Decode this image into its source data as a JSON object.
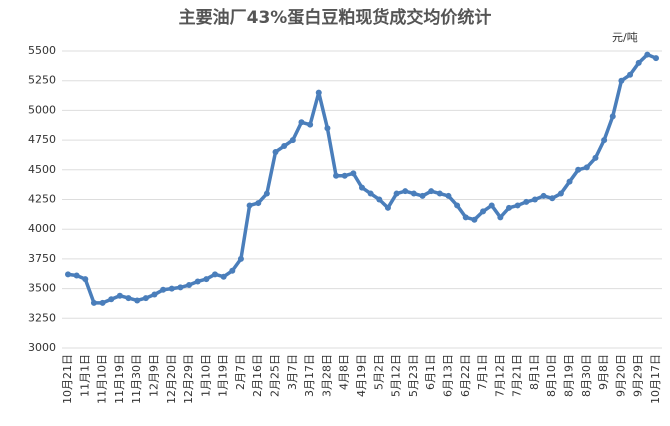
{
  "chart_data": {
    "type": "line",
    "title": "主要油厂43%蛋白豆粕现货成交均价统计",
    "unit": "元/吨",
    "categories": [
      "10月21日",
      null,
      "11月1日",
      null,
      "11月10日",
      null,
      "11月19日",
      null,
      "11月30日",
      null,
      "12月9日",
      null,
      "12月20日",
      null,
      "12月29日",
      null,
      "1月10日",
      null,
      "1月19日",
      null,
      "2月7日",
      null,
      "2月16日",
      null,
      "2月25日",
      null,
      "3月7日",
      null,
      "3月17日",
      null,
      "3月28日",
      null,
      "4月8日",
      null,
      "4月19日",
      null,
      "5月2日",
      null,
      "5月12日",
      null,
      "5月23日",
      null,
      "6月1日",
      null,
      "6月13日",
      null,
      "6月22日",
      null,
      "7月1日",
      null,
      "7月12日",
      null,
      "7月21日",
      null,
      "8月1日",
      null,
      "8月10日",
      null,
      "8月19日",
      null,
      "8月30日",
      null,
      "9月8日",
      null,
      "9月20日",
      null,
      "9月29日",
      null,
      "10月17日"
    ],
    "series": [
      {
        "name": "均价",
        "color": "#4a7ebb",
        "values": [
          3620,
          3610,
          3580,
          3380,
          3380,
          3410,
          3440,
          3420,
          3400,
          3420,
          3450,
          3490,
          3500,
          3510,
          3530,
          3560,
          3580,
          3620,
          3600,
          3650,
          3750,
          4200,
          4220,
          4300,
          4650,
          4700,
          4750,
          4900,
          4880,
          5150,
          4850,
          4450,
          4450,
          4470,
          4350,
          4300,
          4250,
          4180,
          4300,
          4320,
          4300,
          4280,
          4320,
          4300,
          4280,
          4200,
          4100,
          4080,
          4150,
          4200,
          4100,
          4180,
          4200,
          4230,
          4250,
          4280,
          4260,
          4300,
          4400,
          4500,
          4520,
          4600,
          4750,
          4950,
          5250,
          5300,
          5400,
          5470,
          5440
        ]
      }
    ],
    "ylim": [
      3000,
      5500
    ],
    "yticks": [
      3000,
      3250,
      3500,
      3750,
      4000,
      4250,
      4500,
      4750,
      5000,
      5250,
      5500
    ],
    "grid": true
  }
}
